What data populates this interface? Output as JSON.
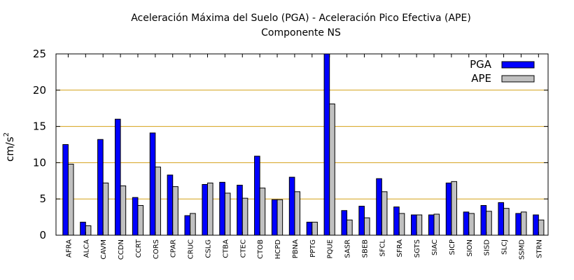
{
  "chart_data": {
    "type": "bar",
    "title": "Aceleración Máxima del Suelo (PGA) -  Aceleración Pico Efectiva (APE)",
    "subtitle": "Componente NS",
    "ylabel": "cm/s",
    "ylabel_sup": "2",
    "xlabel": "",
    "ylim": [
      0,
      25
    ],
    "yticks": [
      "0",
      "5",
      "10",
      "15",
      "20",
      "25"
    ],
    "grid": "horizontal",
    "legend_position": "top-right",
    "categories": [
      "AFRA",
      "ALCA",
      "CAVM",
      "CCDN",
      "CCRT",
      "CORS",
      "CPAR",
      "CRUC",
      "CSLG",
      "CTBA",
      "CTEC",
      "CTOB",
      "HCPD",
      "PBNA",
      "PPTG",
      "PQUE",
      "SASR",
      "SBEB",
      "SFCL",
      "SFRA",
      "SGTS",
      "SIAC",
      "SICP",
      "SION",
      "SISD",
      "SLCJ",
      "SSMD",
      "STRN"
    ],
    "series": [
      {
        "name": "PGA",
        "color": "#0000ff",
        "values": [
          12.5,
          1.8,
          13.2,
          16.0,
          5.2,
          14.1,
          8.3,
          2.7,
          7.0,
          7.3,
          6.9,
          10.9,
          4.9,
          8.0,
          1.8,
          25.0,
          3.4,
          4.0,
          7.8,
          3.9,
          2.8,
          2.8,
          7.2,
          3.2,
          4.1,
          4.5,
          3.0,
          2.8
        ]
      },
      {
        "name": "APE",
        "color": "#c0c0c0",
        "values": [
          9.8,
          1.3,
          7.2,
          6.8,
          4.1,
          9.4,
          6.7,
          3.0,
          7.2,
          5.8,
          5.1,
          6.5,
          4.9,
          6.0,
          1.8,
          18.1,
          2.1,
          2.4,
          6.0,
          3.0,
          2.8,
          2.9,
          7.4,
          3.0,
          3.3,
          3.7,
          3.2,
          2.1
        ]
      }
    ]
  }
}
